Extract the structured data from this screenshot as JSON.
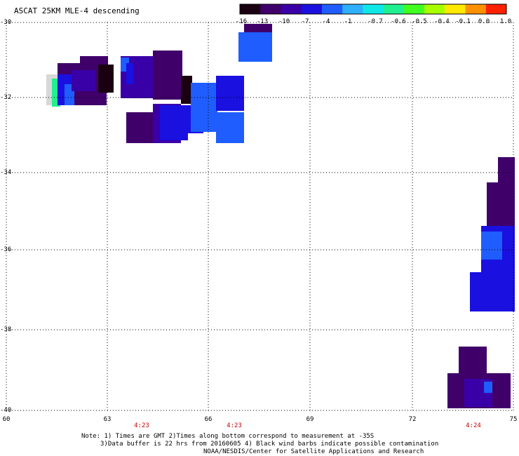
{
  "header": {
    "title": "ASCAT 25KM MLE-4 descending"
  },
  "colorbar": {
    "labels": [
      "-16",
      "-13",
      "-10",
      "-7",
      "-4",
      "-1",
      "-0.7",
      "-0.6",
      "-0.5",
      "-0.4",
      "-0.1",
      "0.0",
      "1.0"
    ],
    "colors": [
      "#1a0010",
      "#40006a",
      "#3a00a8",
      "#1a10e0",
      "#1f5dff",
      "#2fb0ff",
      "#10e8e8",
      "#20f090",
      "#40ff20",
      "#a8ff00",
      "#ffe800",
      "#ff9000",
      "#ff2000"
    ]
  },
  "axes": {
    "lat_labels": [
      "-30",
      "-32",
      "-34",
      "-36",
      "-38",
      "-40"
    ],
    "lon_labels": [
      "60",
      "63",
      "66",
      "69",
      "72",
      "75"
    ],
    "time_labels": [
      "4:23",
      "4:23",
      "4:24"
    ]
  },
  "footer": {
    "line1": "Note: 1) Times are GMT 2)Times along bottom correspond to measurement at -35S",
    "line2": "3)Data buffer is 22 hrs from 20160605 4) Black wind barbs indicate possible contamination",
    "line3": "NOAA/NESDIS/Center for Satellite Applications and Research"
  },
  "colors": {
    "dark_purple": "#40006a",
    "very_dark": "#1a0010",
    "violet": "#3a00a8",
    "blue": "#1a10e0",
    "mid_blue": "#1f5dff",
    "light_blue": "#2fb0ff",
    "green": "#20f090",
    "gray": "#d8d8d8",
    "time_red": "#c00000"
  }
}
